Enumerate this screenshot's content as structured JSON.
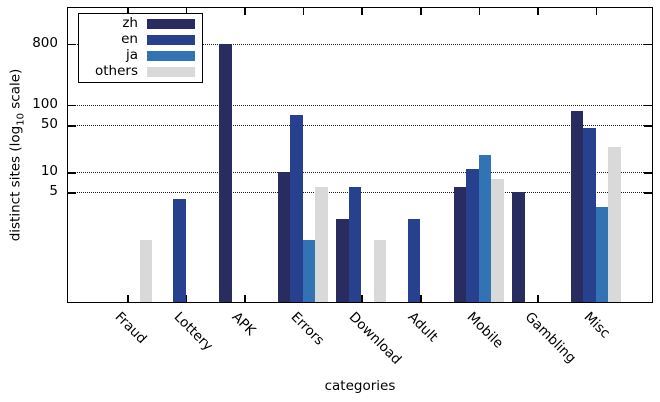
{
  "figure": {
    "xlabel": "categories",
    "ylabel_pre": "distinct sites (log",
    "ylabel_sub": "10",
    "ylabel_post": " scale)",
    "background_color": "#ffffff",
    "frame_color": "#000000"
  },
  "chart_data": {
    "type": "bar",
    "y_scale": "log10",
    "title": "",
    "xlabel": "categories",
    "ylabel": "distinct sites (log10 scale)",
    "categories": [
      "Fraud",
      "Lottery",
      "APK",
      "Errors",
      "Download",
      "Adult",
      "Mobile",
      "Gambling",
      "Misc"
    ],
    "series": [
      {
        "name": "zh",
        "color": "#282c5e",
        "values": [
          0,
          0,
          800,
          10,
          2,
          0,
          6,
          5,
          80
        ]
      },
      {
        "name": "en",
        "color": "#27418e",
        "values": [
          0,
          4,
          0,
          70,
          6,
          2,
          11,
          0,
          45
        ]
      },
      {
        "name": "ja",
        "color": "#3173b3",
        "values": [
          0,
          0,
          0,
          1,
          0,
          0,
          18,
          0,
          3
        ]
      },
      {
        "name": "others",
        "color": "#d9d9d9",
        "values": [
          1,
          0,
          0,
          6,
          1,
          0,
          8,
          0,
          24
        ]
      }
    ],
    "yticks": [
      "5",
      "10",
      "50",
      "100",
      "800"
    ],
    "ytick_values": [
      5,
      10,
      50,
      100,
      800
    ],
    "ylim": [
      0.11,
      2700
    ],
    "grid": "horizontal dotted lines at y ticks",
    "legend_position": "top-left",
    "legend_entries": [
      "zh",
      "en",
      "ja",
      "others"
    ]
  }
}
